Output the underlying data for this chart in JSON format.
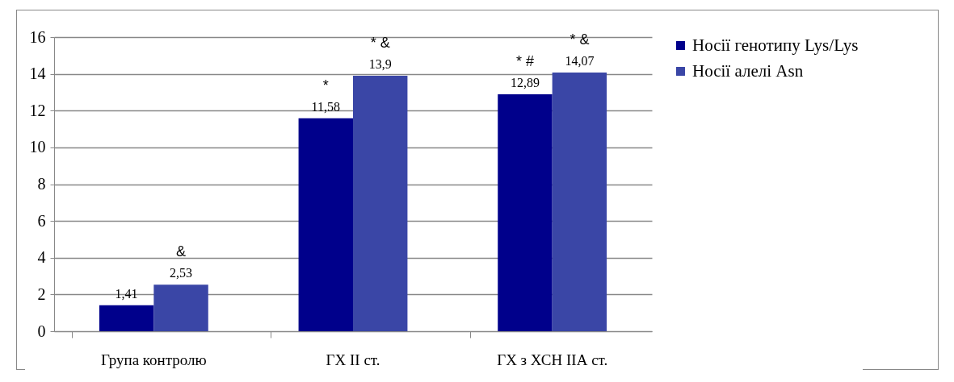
{
  "chart_data": {
    "type": "bar",
    "categories": [
      "Група контролю",
      "ГХ ІІ ст.",
      "ГХ з ХСН ІІА ст."
    ],
    "series": [
      {
        "name": "Носії генотипу Lys/Lys",
        "color": "#00008b",
        "values": [
          1.41,
          11.58,
          12.89
        ],
        "value_labels": [
          "1,41",
          "11,58",
          "12,89"
        ]
      },
      {
        "name": "Носії алелі Asn",
        "color": "#3a46a6",
        "values": [
          2.53,
          13.9,
          14.07
        ],
        "value_labels": [
          "2,53",
          "13,9",
          "14,07"
        ]
      }
    ],
    "ylim": [
      0,
      16
    ],
    "yticks": [
      0,
      2,
      4,
      6,
      8,
      10,
      12,
      14,
      16
    ],
    "grid": "y",
    "legend": "right",
    "annotations": [
      {
        "text": "&",
        "x": "Група контролю",
        "y": 2.53
      },
      {
        "text": "*",
        "x": "ГХ ІІ ст.",
        "y": 11.58
      },
      {
        "text": "* &",
        "x": "ГХ ІІ ст.",
        "y": 13.9
      },
      {
        "text": "* #",
        "x": "ГХ з ХСН ІІА ст.",
        "y": 12.89
      },
      {
        "text": "* &",
        "x": "ГХ з ХСН ІІА ст.",
        "y": 14.07
      }
    ]
  }
}
